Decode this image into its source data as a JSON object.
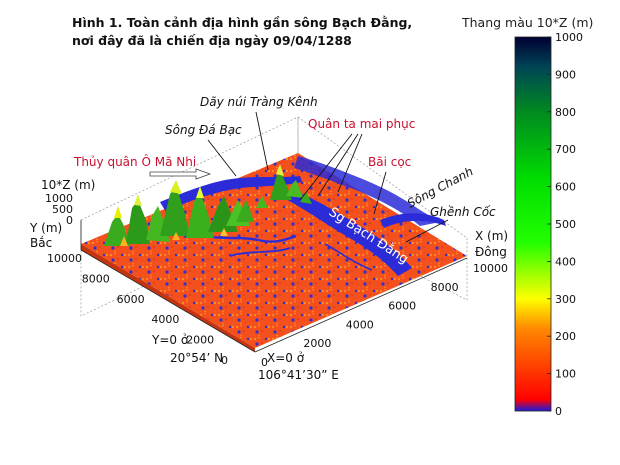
{
  "chart_data": {
    "type": "surface3d",
    "title": [
      "Hình 1. Toàn cảnh địa hình gần sông Bạch Đằng,",
      "nơi đây đã là chiến địa ngày 09/04/1288"
    ],
    "colorbar": {
      "title": "Thang màu 10*Z (m)",
      "ticks": [
        0,
        100,
        200,
        300,
        400,
        500,
        600,
        700,
        800,
        900,
        1000
      ],
      "range": [
        0,
        1000
      ]
    },
    "axes": {
      "x": {
        "label": "X (m)",
        "direction": "Đông",
        "ticks": [
          0,
          2000,
          4000,
          6000,
          8000,
          10000
        ],
        "range": [
          0,
          10000
        ]
      },
      "y": {
        "label": "Y (m)",
        "direction": "Bắc",
        "ticks": [
          0,
          2000,
          4000,
          6000,
          8000,
          10000
        ],
        "range": [
          0,
          10000
        ]
      },
      "z": {
        "label": "10*Z (m)",
        "ticks": [
          0,
          500,
          1000
        ],
        "range": [
          0,
          1000
        ]
      }
    },
    "origin": {
      "y0": "Y=0 ở",
      "y0_value": "20°54’ N",
      "x0": "X=0 ở",
      "x0_value": "106°41’30” E"
    },
    "annotations": {
      "day_nui": "Dãy núi Tràng Kênh",
      "song_da_bac": "Sông Đá Bạc",
      "quan_ta": "Quân ta mai phục",
      "thuy_quan": "Thủy quân Ô Mã Nhi",
      "bai_coc": "Bãi cọc",
      "song_chanh": "Sông Chanh",
      "ghenh_coc": "Ghềnh Cốc",
      "bach_dang": "Sg Bạch Đằng"
    },
    "colors": {
      "water": "#2b2bd8",
      "lowland": "#f4501e",
      "mountain": "#3aaa1e",
      "annotation": "#c8102e"
    }
  }
}
